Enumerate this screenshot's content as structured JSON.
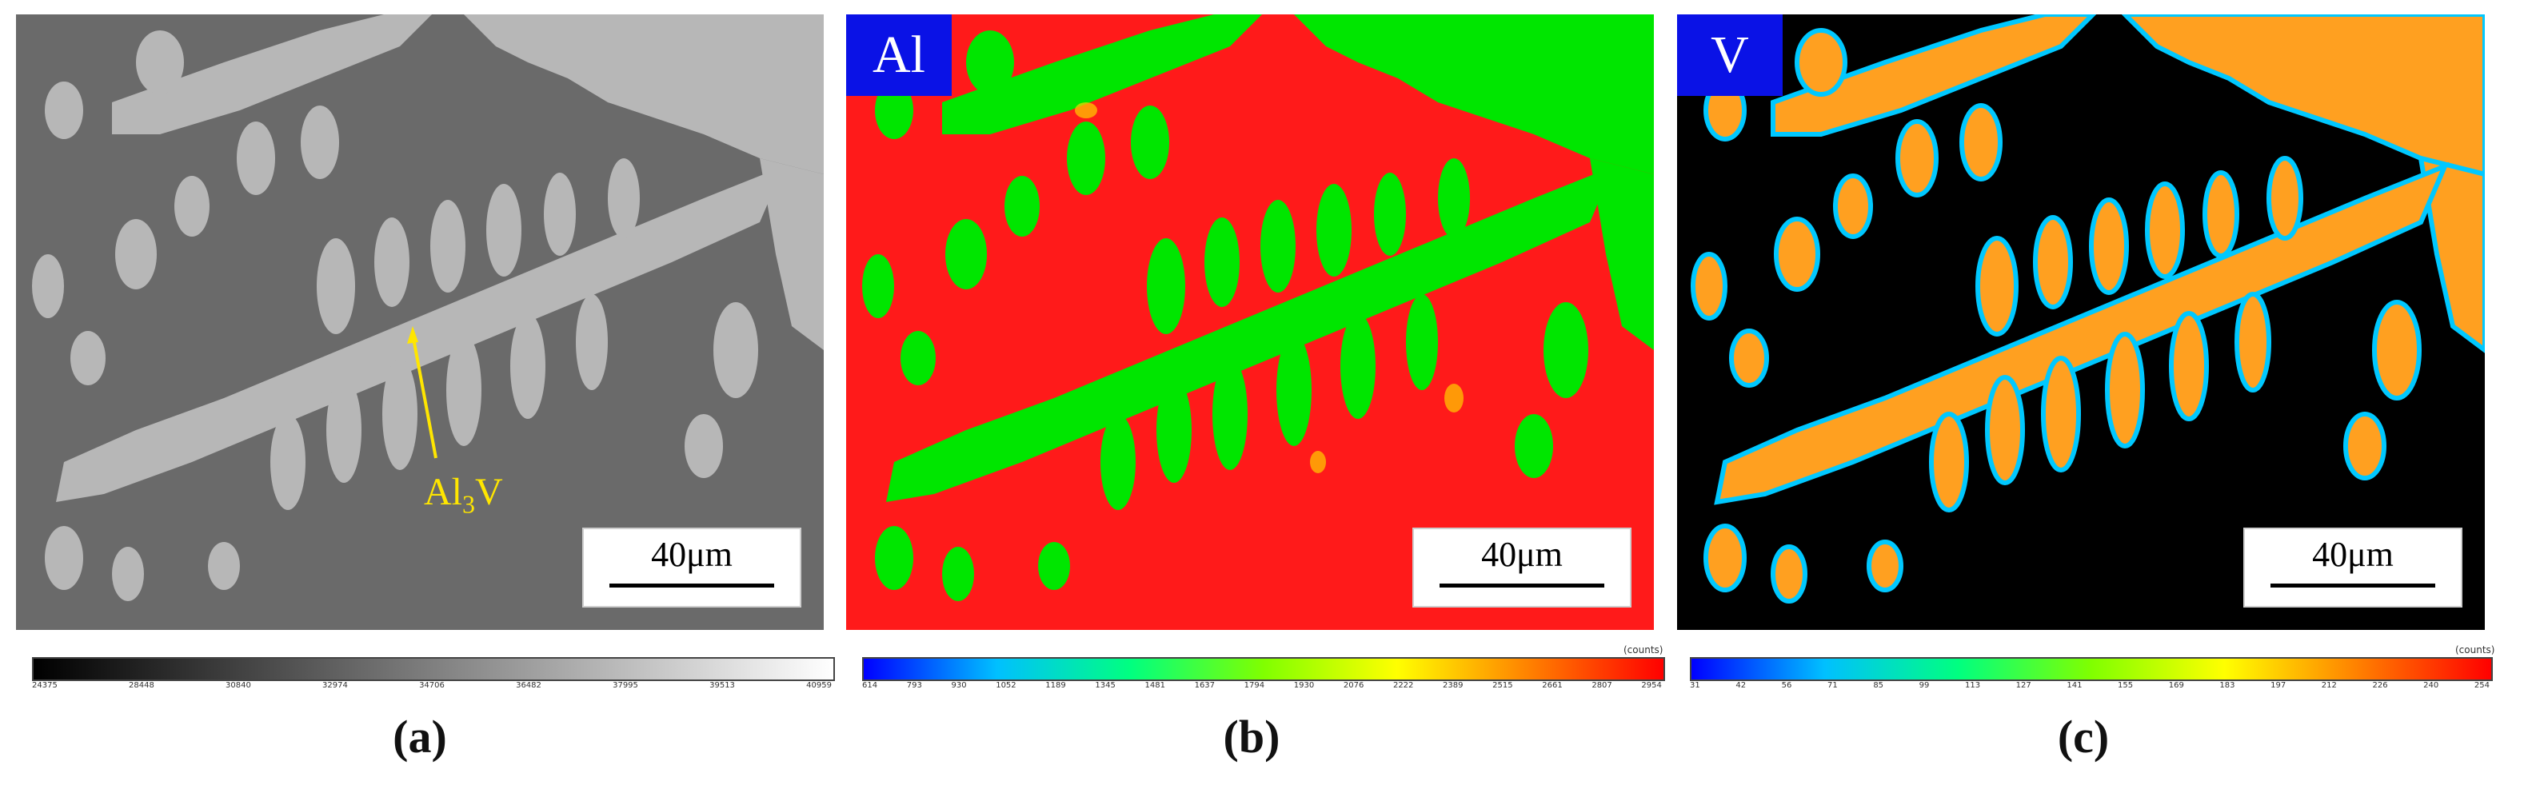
{
  "panels": [
    {
      "id": "a",
      "caption": "(a)",
      "scale_label": "40μm",
      "phase_label": {
        "main": "Al",
        "sub": "3",
        "tail": "V"
      },
      "colorbar_ticks": [
        "24375",
        "28448",
        "30840",
        "32974",
        "34706",
        "36482",
        "37995",
        "39513",
        "40959"
      ]
    },
    {
      "id": "b",
      "caption": "(b)",
      "element": "Al",
      "scale_label": "40μm",
      "counts_label": "(counts)",
      "colorbar_ticks": [
        "614",
        "793",
        "930",
        "1052",
        "1189",
        "1345",
        "1481",
        "1637",
        "1794",
        "1930",
        "2076",
        "2222",
        "2389",
        "2515",
        "2661",
        "2807",
        "2954"
      ]
    },
    {
      "id": "c",
      "caption": "(c)",
      "element": "V",
      "scale_label": "40μm",
      "counts_label": "(counts)",
      "colorbar_ticks": [
        "31",
        "42",
        "56",
        "71",
        "85",
        "99",
        "113",
        "127",
        "141",
        "155",
        "169",
        "183",
        "197",
        "212",
        "226",
        "240",
        "254"
      ]
    }
  ],
  "colors": {
    "matrix_gray": "#6a6a6a",
    "phase_gray": "#b7b7b7",
    "al_matrix": "#ff1a1a",
    "al_phase": "#00e600",
    "v_background": "#000000",
    "v_phase": "#ffa020",
    "v_edge": "#00c8ff",
    "element_tag": "#0a12e6",
    "annotation": "#ffe600"
  }
}
